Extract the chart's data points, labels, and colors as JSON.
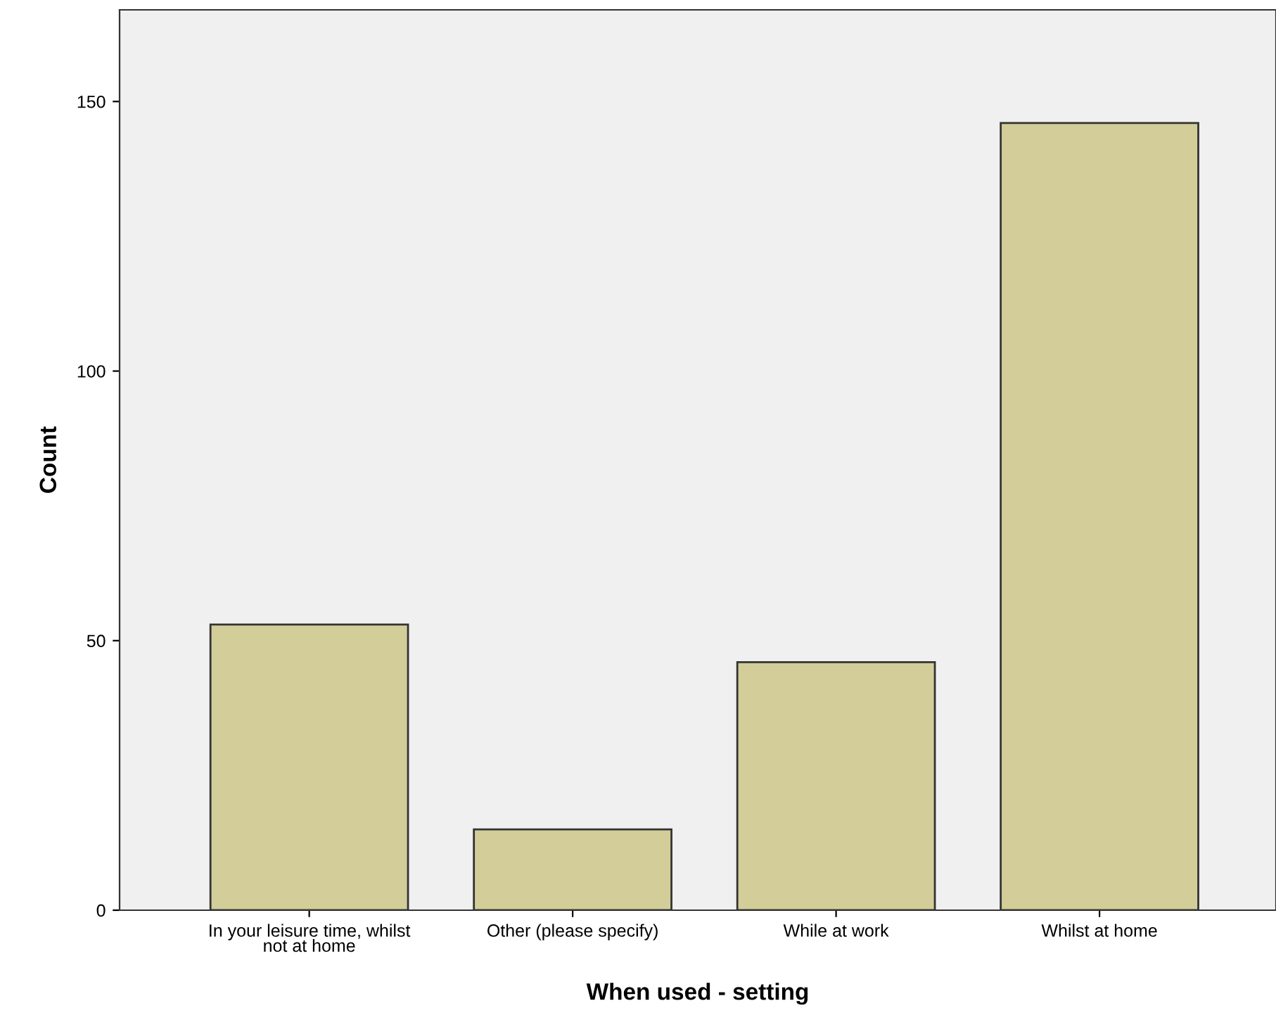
{
  "chart_data": {
    "type": "bar",
    "xlabel": "When used - setting",
    "ylabel": "Count",
    "categories": [
      "In your leisure time, whilst\nnot at home",
      "Other (please specify)",
      "While at work",
      "Whilst at home"
    ],
    "values": [
      53,
      15,
      46,
      146
    ],
    "color": "#d3ce99",
    "ylim": [
      0,
      167
    ],
    "yticks": [
      0,
      50,
      100,
      150
    ],
    "grid": false
  }
}
